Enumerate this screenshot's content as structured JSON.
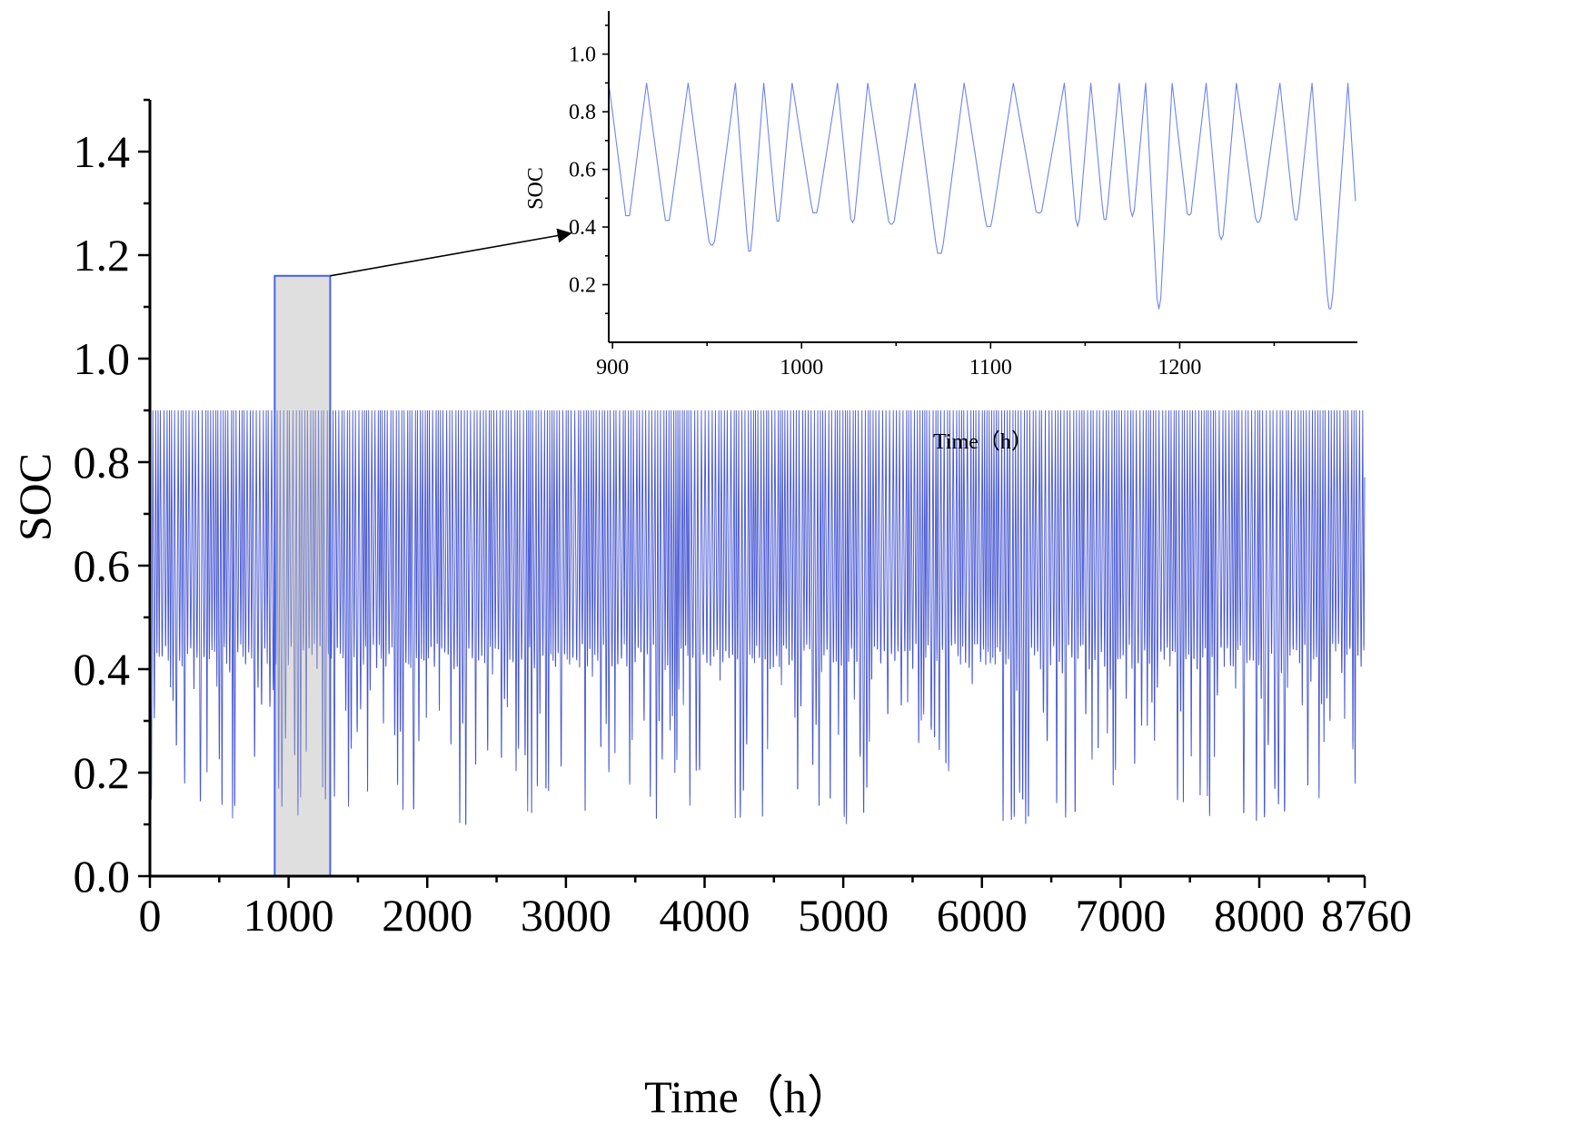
{
  "colors": {
    "series_main": "#0a1fc4",
    "series_inset": "#6f84ee",
    "highlight_fill": "#b8b8b8",
    "highlight_stroke": "#4a62e8",
    "axis": "#000000"
  },
  "chart_data": [
    {
      "id": "main",
      "type": "line",
      "xlabel": "Time（h）",
      "ylabel": "SOC",
      "xlim": [
        0,
        8760
      ],
      "ylim": [
        0,
        1.5
      ],
      "xticks": [
        0,
        1000,
        2000,
        3000,
        4000,
        5000,
        6000,
        7000,
        8000,
        8760
      ],
      "xtick_labels": [
        "0",
        "1000",
        "2000",
        "3000",
        "4000",
        "5000",
        "6000",
        "7000",
        "8000",
        "8760"
      ],
      "yticks": [
        0,
        0.2,
        0.4,
        0.6,
        0.8,
        1.0,
        1.2,
        1.4
      ],
      "ytick_labels": [
        "0.0",
        "0.2",
        "0.4",
        "0.6",
        "0.8",
        "1.0",
        "1.2",
        "1.4"
      ],
      "series": [
        {
          "x_range": [
            0,
            8760
          ],
          "sample_interval_h": 1,
          "y_max": 0.9,
          "y_min": 0.1,
          "typical_low": 0.4
        }
      ],
      "zoom_region": {
        "x_range": [
          900,
          1300
        ],
        "y_range": [
          0,
          1.16
        ]
      }
    },
    {
      "id": "inset",
      "type": "line",
      "xlabel": "Time（h）",
      "ylabel": "SOC",
      "xlim": [
        898,
        1294
      ],
      "ylim": [
        0,
        1.15
      ],
      "xticks": [
        900,
        1000,
        1100,
        1200
      ],
      "xtick_labels": [
        "900",
        "1000",
        "1100",
        "1200"
      ],
      "yticks": [
        0.2,
        0.4,
        0.6,
        0.8,
        1.0
      ],
      "ytick_labels": [
        "0.2",
        "0.4",
        "0.6",
        "0.8",
        "1.0"
      ],
      "series": [
        {
          "x_range": [
            898,
            1293
          ],
          "sample_interval_h": 1,
          "y_max": 0.9,
          "y_min": 0.1,
          "typical_low": 0.4
        }
      ]
    }
  ]
}
